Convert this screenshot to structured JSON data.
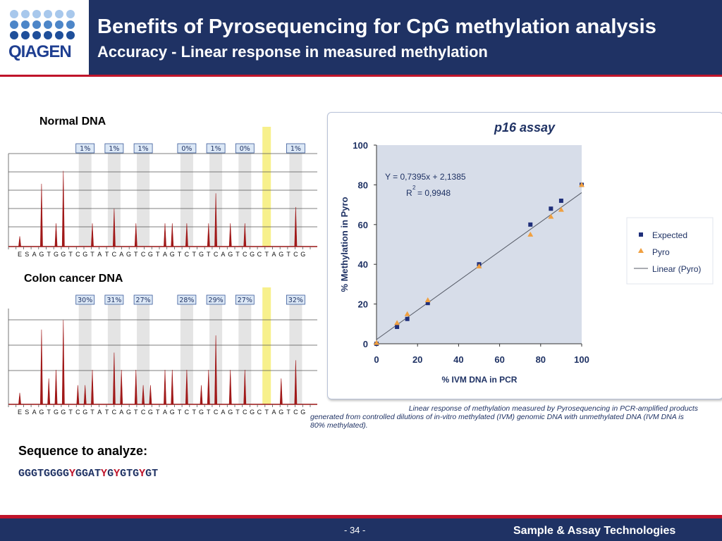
{
  "header": {
    "logo_text": "QIAGEN",
    "title": "Benefits of Pyrosequencing for CpG methylation analysis",
    "subtitle": "Accuracy - Linear response in measured methylation"
  },
  "colors": {
    "navy": "#1f3264",
    "red": "#c0142a",
    "peak": "#a01818",
    "highlight": "#f7f08c",
    "expected": "#1f2f7a",
    "pyro": "#f0a040"
  },
  "pyrograms": [
    {
      "label": "Normal DNA",
      "percents": [
        "1%",
        "1%",
        "1%",
        "0%",
        "1%",
        "0%",
        "1%"
      ],
      "dispensation": [
        "E",
        "S",
        "A",
        "G",
        "T",
        "G",
        "G",
        "T",
        "C",
        "G",
        "T",
        "A",
        "T",
        "C",
        "A",
        "G",
        "T",
        "C",
        "G",
        "T",
        "A",
        "G",
        "T",
        "C",
        "T",
        "G",
        "T",
        "C",
        "A",
        "G",
        "T",
        "C",
        "G",
        "C",
        "T",
        "A",
        "G",
        "T",
        "C",
        "G"
      ],
      "peaks": [
        0.12,
        0.0,
        0.0,
        0.73,
        0.0,
        0.27,
        0.88,
        0.0,
        0.0,
        0.0,
        0.27,
        0.0,
        0.0,
        0.44,
        0.0,
        0.0,
        0.27,
        0.0,
        0.0,
        0.0,
        0.27,
        0.27,
        0.0,
        0.27,
        0.0,
        0.0,
        0.27,
        0.62,
        0.0,
        0.27,
        0.0,
        0.27,
        0.0,
        0.0,
        0.0,
        0.0,
        0.0,
        0.0,
        0.46,
        0.0
      ]
    },
    {
      "label": "Colon cancer DNA",
      "percents": [
        "30%",
        "31%",
        "27%",
        "28%",
        "29%",
        "27%",
        "32%"
      ],
      "dispensation": [
        "E",
        "S",
        "A",
        "G",
        "T",
        "G",
        "G",
        "T",
        "C",
        "G",
        "T",
        "A",
        "T",
        "C",
        "A",
        "G",
        "T",
        "C",
        "G",
        "T",
        "A",
        "G",
        "T",
        "C",
        "T",
        "G",
        "T",
        "C",
        "A",
        "G",
        "T",
        "C",
        "G",
        "C",
        "T",
        "A",
        "G",
        "T",
        "C",
        "G"
      ],
      "peaks": [
        0.12,
        0.0,
        0.0,
        0.78,
        0.27,
        0.36,
        0.88,
        0.0,
        0.2,
        0.2,
        0.36,
        0.0,
        0.0,
        0.54,
        0.36,
        0.0,
        0.36,
        0.2,
        0.2,
        0.0,
        0.36,
        0.36,
        0.0,
        0.36,
        0.0,
        0.2,
        0.36,
        0.72,
        0.0,
        0.36,
        0.0,
        0.36,
        0.0,
        0.0,
        0.0,
        0.0,
        0.27,
        0.0,
        0.46,
        0.0
      ]
    }
  ],
  "chart_data": {
    "type": "scatter",
    "title": "p16 assay",
    "xlabel": "% IVM DNA in PCR",
    "ylabel": "% Methylation in Pyro",
    "xlim": [
      0,
      100
    ],
    "ylim": [
      0,
      100
    ],
    "xticks": [
      0,
      20,
      40,
      60,
      80,
      100
    ],
    "yticks": [
      0,
      20,
      40,
      60,
      80,
      100
    ],
    "equation": "Y = 0,7395x + 2,1385",
    "r_squared_label": "R",
    "r_squared_exp": "2",
    "r_squared_value": "= 0,9948",
    "legend_position": "right",
    "series": [
      {
        "name": "Expected",
        "marker": "square",
        "x": [
          0,
          10,
          15,
          25,
          50,
          75,
          85,
          90,
          100
        ],
        "y": [
          0,
          8.5,
          12.5,
          20.5,
          40,
          60,
          68,
          72,
          80
        ]
      },
      {
        "name": "Pyro",
        "marker": "triangle",
        "x": [
          0,
          10,
          15,
          25,
          50,
          75,
          85,
          90,
          100
        ],
        "y": [
          0.5,
          10.5,
          15,
          22,
          39,
          55,
          64,
          67.5,
          80
        ]
      }
    ],
    "fit": {
      "name": "Linear (Pyro)",
      "slope": 0.7395,
      "intercept": 2.1385
    }
  },
  "caption": {
    "line1": "Linear response of methylation measured by Pyrosequencing in PCR-amplified products",
    "line2": "generated from controlled dilutions of in-vitro methylated (IVM) genomic DNA with unmethylated DNA (IVM DNA is 80% methylated)."
  },
  "sequence": {
    "label": "Sequence to analyze:",
    "parts": [
      "GGGTGGGG",
      "Y",
      "GGAT",
      "Y",
      "G",
      "Y",
      "GTG",
      "Y",
      "GT"
    ]
  },
  "footer": {
    "page": "- 34 -",
    "tagline": "Sample & Assay Technologies"
  }
}
